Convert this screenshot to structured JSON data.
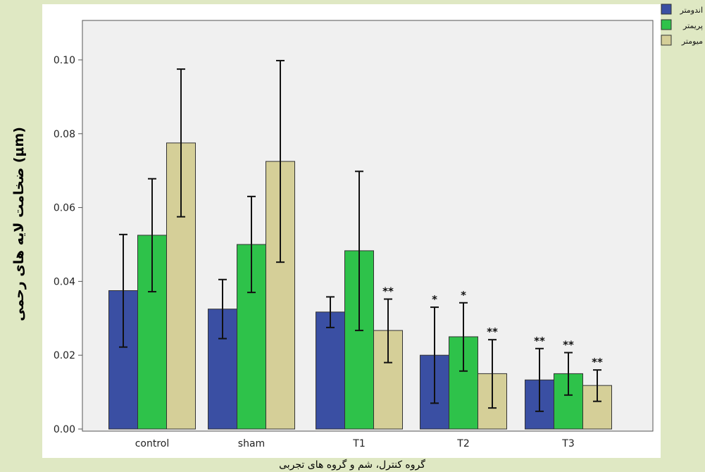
{
  "chart_data": {
    "type": "bar",
    "title": "",
    "xlabel": "گروه کنترل، شم و گروه های تجربی",
    "ylabel": "ضخامت لایه های رحمی (μm)",
    "ylim": [
      0,
      0.11
    ],
    "yticks": [
      "0.00",
      "0.02",
      "0.04",
      "0.06",
      "0.08",
      "0.10"
    ],
    "categories": [
      "control",
      "sham",
      "T1",
      "T2",
      "T3"
    ],
    "legend_position": "top-right",
    "series": [
      {
        "name": "اندومتر",
        "color": "#3a4fa3",
        "values": [
          0.0375,
          0.0325,
          0.0317,
          0.02,
          0.0133
        ],
        "error_low": [
          0.0222,
          0.0245,
          0.0275,
          0.007,
          0.0048
        ],
        "error_high": [
          0.0527,
          0.0405,
          0.0358,
          0.033,
          0.0218
        ],
        "annotations": [
          "",
          "",
          "",
          "*",
          "**"
        ]
      },
      {
        "name": "پریمتر",
        "color": "#2ec24a",
        "values": [
          0.0525,
          0.05,
          0.0483,
          0.025,
          0.015
        ],
        "error_low": [
          0.0372,
          0.037,
          0.0267,
          0.0157,
          0.0092
        ],
        "error_high": [
          0.0678,
          0.063,
          0.0698,
          0.0342,
          0.0207
        ],
        "annotations": [
          "",
          "",
          "",
          "*",
          "**"
        ]
      },
      {
        "name": "میومتر",
        "color": "#d5cf98",
        "values": [
          0.0775,
          0.0725,
          0.0267,
          0.015,
          0.0118
        ],
        "error_low": [
          0.0575,
          0.0452,
          0.018,
          0.0057,
          0.0075
        ],
        "error_high": [
          0.0975,
          0.0998,
          0.0352,
          0.0242,
          0.016
        ],
        "annotations": [
          "",
          "",
          "**",
          "**",
          "**"
        ]
      }
    ]
  }
}
